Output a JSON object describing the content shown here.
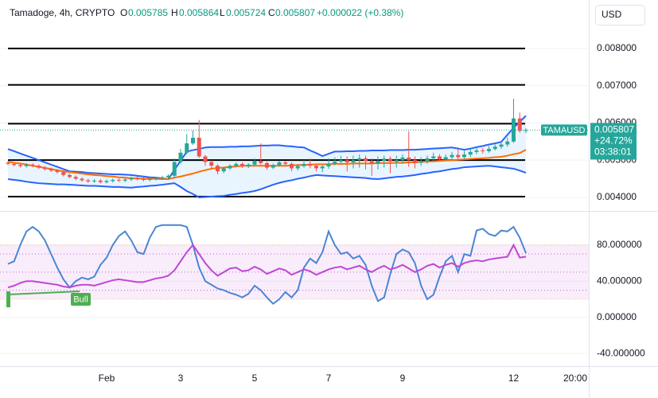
{
  "chart_data": [
    {
      "type": "candlestick",
      "title": "Tamadoge, 4h, CRYPTO",
      "ohlc_labels": [
        "O",
        "H",
        "L",
        "C"
      ],
      "change_label": "+0.000022 (+0.38%)",
      "currency": "USD",
      "symbol": "TAMAUSD",
      "price_tag": {
        "change": "+24.72%",
        "countdown": "03:38:01"
      },
      "categories": [
        null,
        null,
        null,
        null,
        null,
        null,
        null,
        null,
        null,
        null,
        null,
        null,
        null,
        null,
        null,
        null,
        "Feb",
        null,
        null,
        null,
        null,
        null,
        null,
        null,
        null,
        null,
        null,
        null,
        "3",
        null,
        null,
        null,
        null,
        null,
        null,
        null,
        null,
        null,
        null,
        null,
        "5",
        null,
        null,
        null,
        null,
        null,
        null,
        null,
        null,
        null,
        null,
        null,
        "7",
        null,
        null,
        null,
        null,
        null,
        null,
        null,
        null,
        null,
        null,
        null,
        "9",
        null,
        null,
        null,
        null,
        null,
        null,
        null,
        null,
        null,
        null,
        null,
        null,
        null,
        null,
        null,
        null,
        null,
        "12",
        null,
        null,
        null,
        null,
        null,
        null,
        null,
        null,
        null,
        "20:00"
      ],
      "open": [
        0.00493,
        0.0049,
        0.00487,
        0.00484,
        0.00488,
        0.00485,
        0.0048,
        0.00476,
        0.00472,
        0.00468,
        0.0046,
        0.00455,
        0.0045,
        0.00446,
        0.00443,
        0.00445,
        0.00441,
        0.00444,
        0.00447,
        0.00445,
        0.00448,
        0.00452,
        0.0045,
        0.00447,
        0.00449,
        0.00451,
        0.00454,
        0.00458,
        0.00495,
        0.0052,
        0.00545,
        0.0056,
        0.0051,
        0.00495,
        0.00485,
        0.0047,
        0.00478,
        0.00485,
        0.0049,
        0.00483,
        0.00488,
        0.00498,
        0.00492,
        0.0048,
        0.00487,
        0.00494,
        0.0049,
        0.00478,
        0.00484,
        0.0049,
        0.00485,
        0.00478,
        0.00483,
        0.0049,
        0.00496,
        0.005,
        0.00494,
        0.005,
        0.00505,
        0.00497,
        0.0049,
        0.00498,
        0.00504,
        0.00496,
        0.005,
        0.00507,
        0.005,
        0.00493,
        0.00498,
        0.00505,
        0.0051,
        0.00502,
        0.00508,
        0.00514,
        0.00508,
        0.00515,
        0.00522,
        0.00526,
        0.00524,
        0.0053,
        0.00536,
        0.00542,
        0.0055,
        0.00612,
        0.005785,
        null,
        null,
        null,
        null,
        null,
        null,
        null,
        null
      ],
      "high": [
        0.00497,
        0.00494,
        0.00491,
        0.00492,
        0.00492,
        0.00489,
        0.00484,
        0.0048,
        0.00476,
        0.00472,
        0.00464,
        0.00459,
        0.00454,
        0.0045,
        0.00449,
        0.00449,
        0.00448,
        0.00451,
        0.00451,
        0.00452,
        0.00456,
        0.00456,
        0.00454,
        0.00453,
        0.00455,
        0.00458,
        0.00462,
        0.00505,
        0.0053,
        0.0057,
        0.0058,
        0.00608,
        0.00514,
        0.00499,
        0.00489,
        0.00482,
        0.00489,
        0.00494,
        0.00494,
        0.00492,
        0.00505,
        0.00545,
        0.00496,
        0.00491,
        0.00498,
        0.00498,
        0.00494,
        0.00488,
        0.005,
        0.00505,
        0.00489,
        0.00487,
        0.00505,
        0.00508,
        0.00512,
        0.0051,
        0.00512,
        0.00515,
        0.00512,
        0.00505,
        0.0051,
        0.00512,
        0.0051,
        0.00512,
        0.00515,
        0.00577,
        0.0051,
        0.00508,
        0.00512,
        0.0052,
        0.00516,
        0.00515,
        0.00522,
        0.00535,
        0.00525,
        0.0053,
        0.00534,
        0.00532,
        0.00538,
        0.00542,
        0.0055,
        0.0056,
        0.00665,
        0.00628,
        0.005864,
        null,
        null,
        null,
        null,
        null,
        null,
        null,
        null
      ],
      "low": [
        0.00486,
        0.00483,
        0.0048,
        0.0048,
        0.00481,
        0.00476,
        0.00472,
        0.00468,
        0.00464,
        0.00456,
        0.00451,
        0.00446,
        0.00442,
        0.00439,
        0.00439,
        0.00437,
        0.00437,
        0.0044,
        0.00441,
        0.00441,
        0.00444,
        0.00446,
        0.00443,
        0.00443,
        0.00445,
        0.00447,
        0.0045,
        0.00454,
        0.00491,
        0.00516,
        0.00541,
        0.00506,
        0.00485,
        0.00478,
        0.00462,
        0.00465,
        0.00474,
        0.00481,
        0.00479,
        0.00479,
        0.00484,
        0.00488,
        0.00474,
        0.00476,
        0.00483,
        0.00486,
        0.0047,
        0.00472,
        0.0048,
        0.00478,
        0.0047,
        0.00468,
        0.00477,
        0.00486,
        0.0049,
        0.0047,
        0.00478,
        0.0048,
        0.00475,
        0.00458,
        0.00475,
        0.0048,
        0.00465,
        0.0048,
        0.0049,
        0.00482,
        0.00478,
        0.00485,
        0.0049,
        0.00495,
        0.00496,
        0.00498,
        0.00502,
        0.005,
        0.00504,
        0.00508,
        0.00516,
        0.00518,
        0.0052,
        0.00526,
        0.0053,
        0.00536,
        0.00546,
        0.00574,
        0.005724,
        null,
        null,
        null,
        null,
        null,
        null,
        null,
        null
      ],
      "close": [
        0.0049,
        0.00487,
        0.00484,
        0.00488,
        0.00485,
        0.0048,
        0.00476,
        0.00472,
        0.00468,
        0.0046,
        0.00455,
        0.0045,
        0.00446,
        0.00443,
        0.00445,
        0.00441,
        0.00444,
        0.00447,
        0.00445,
        0.00448,
        0.00452,
        0.0045,
        0.00447,
        0.00449,
        0.00451,
        0.00454,
        0.00458,
        0.00495,
        0.0052,
        0.00545,
        0.0056,
        0.0051,
        0.00495,
        0.00485,
        0.0047,
        0.00478,
        0.00485,
        0.0049,
        0.00483,
        0.00488,
        0.00498,
        0.00492,
        0.0048,
        0.00487,
        0.00494,
        0.0049,
        0.00478,
        0.00484,
        0.0049,
        0.00485,
        0.00478,
        0.00483,
        0.0049,
        0.00496,
        0.005,
        0.00494,
        0.005,
        0.00505,
        0.00497,
        0.0049,
        0.00498,
        0.00504,
        0.00496,
        0.005,
        0.00507,
        0.005,
        0.00493,
        0.00498,
        0.00505,
        0.0051,
        0.00502,
        0.00508,
        0.00514,
        0.00508,
        0.00515,
        0.00522,
        0.00526,
        0.00524,
        0.0053,
        0.00536,
        0.00542,
        0.0055,
        0.00612,
        0.005785,
        0.005807,
        null,
        null,
        null,
        null,
        null,
        null,
        null,
        null
      ],
      "up_color": "#26a69a",
      "down_color": "#ef5350",
      "overlays": [
        {
          "color": "#2962ff",
          "values": [
            0.0053,
            0.00524,
            0.00518,
            0.00512,
            0.00506,
            0.005,
            0.00494,
            0.00488,
            0.00482,
            0.00476,
            0.0047,
            0.00469,
            0.00468,
            0.00466,
            0.00465,
            0.00464,
            0.00463,
            0.00462,
            0.00462,
            0.00461,
            0.0046,
            0.00458,
            0.00456,
            0.00454,
            0.00453,
            0.00451,
            0.00449,
            0.00474,
            0.00498,
            0.00523,
            0.00527,
            0.0053,
            0.00534,
            0.00535,
            0.00535,
            0.00535,
            0.00536,
            0.00536,
            0.00537,
            0.00537,
            0.00538,
            0.00539,
            0.00539,
            0.0054,
            0.0054,
            0.00538,
            0.00537,
            0.00535,
            0.00534,
            0.00526,
            0.00519,
            0.00511,
            0.00517,
            0.00523,
            0.00523,
            0.00524,
            0.00524,
            0.00525,
            0.00525,
            0.00526,
            0.00526,
            0.00526,
            0.00527,
            0.00527,
            0.00527,
            0.00528,
            0.00528,
            0.00529,
            0.0053,
            0.00531,
            0.00532,
            0.00533,
            0.00534,
            0.00531,
            0.00528,
            0.00531,
            0.00535,
            0.00538,
            0.00542,
            0.00545,
            0.00549,
            0.00568,
            0.00587,
            0.00603,
            0.00619,
            null,
            null,
            null,
            null,
            null,
            null,
            null,
            null
          ]
        },
        {
          "color": "#ff6d00",
          "values": [
            0.00496,
            0.00493,
            0.00491,
            0.00488,
            0.00485,
            0.00482,
            0.00479,
            0.00476,
            0.00473,
            0.0047,
            0.00468,
            0.00466,
            0.00464,
            0.00462,
            0.0046,
            0.00459,
            0.00457,
            0.00456,
            0.00454,
            0.00453,
            0.00451,
            0.00451,
            0.0045,
            0.0045,
            0.0045,
            0.00449,
            0.00449,
            0.00453,
            0.00456,
            0.0046,
            0.00464,
            0.00469,
            0.00473,
            0.00477,
            0.00479,
            0.0048,
            0.00482,
            0.00483,
            0.00485,
            0.00485,
            0.00485,
            0.00485,
            0.00485,
            0.00485,
            0.00485,
            0.00485,
            0.00486,
            0.00487,
            0.00487,
            0.00488,
            0.00489,
            0.00489,
            0.00489,
            0.0049,
            0.0049,
            0.0049,
            0.00491,
            0.00491,
            0.00491,
            0.00491,
            0.00492,
            0.00492,
            0.00492,
            0.00493,
            0.00493,
            0.00494,
            0.00494,
            0.00495,
            0.00496,
            0.00497,
            0.00498,
            0.00499,
            0.005,
            0.00501,
            0.00502,
            0.00503,
            0.00504,
            0.00505,
            0.00506,
            0.00508,
            0.00509,
            0.00512,
            0.00516,
            0.00519,
            0.00528,
            null,
            null,
            null,
            null,
            null,
            null,
            null,
            null
          ]
        },
        {
          "color": "#2962ff",
          "values": [
            0.00449,
            0.00447,
            0.00445,
            0.00442,
            0.0044,
            0.00438,
            0.00437,
            0.00436,
            0.00435,
            0.00435,
            0.00434,
            0.00433,
            0.00432,
            0.00431,
            0.00431,
            0.0043,
            0.00429,
            0.00428,
            0.00428,
            0.00427,
            0.00426,
            0.00428,
            0.00429,
            0.00431,
            0.00432,
            0.00434,
            0.00436,
            0.00438,
            0.00428,
            0.00417,
            0.00409,
            0.004,
            0.00401,
            0.00402,
            0.00403,
            0.00404,
            0.00407,
            0.00409,
            0.00412,
            0.00414,
            0.00417,
            0.00422,
            0.00428,
            0.00434,
            0.00439,
            0.00443,
            0.00446,
            0.0045,
            0.00453,
            0.00457,
            0.0046,
            0.00459,
            0.00458,
            0.00457,
            0.00456,
            0.00455,
            0.00454,
            0.00453,
            0.00452,
            0.0045,
            0.00449,
            0.00451,
            0.00453,
            0.00455,
            0.00456,
            0.00458,
            0.0046,
            0.00463,
            0.00465,
            0.00468,
            0.0047,
            0.00473,
            0.00476,
            0.00478,
            0.00481,
            0.00482,
            0.00483,
            0.00484,
            0.00485,
            0.00483,
            0.00481,
            0.00479,
            0.00477,
            0.00472,
            0.00466,
            null,
            null,
            null,
            null,
            null,
            null,
            null,
            null
          ]
        }
      ],
      "levels": [
        0.008,
        0.00702,
        0.00598,
        0.005,
        0.00402
      ],
      "level_color": "#000000",
      "ylim": [
        0.0037,
        0.0093
      ],
      "yticks": [
        {
          "value": 0.008,
          "label": "0.008000"
        },
        {
          "value": 0.007,
          "label": "0.007000"
        },
        {
          "value": 0.006,
          "label": "0.006000"
        },
        {
          "value": 0.005,
          "label": "0.005000"
        },
        {
          "value": 0.004,
          "label": "0.004000"
        }
      ]
    },
    {
      "type": "line",
      "series": [
        {
          "color": "#4a86d4",
          "values": [
            59,
            62,
            80,
            95,
            100,
            95,
            85,
            70,
            55,
            42,
            33,
            40,
            44,
            42,
            45,
            58,
            66,
            80,
            90,
            95,
            85,
            72,
            70,
            88,
            100,
            102,
            102,
            102,
            102,
            100,
            80,
            55,
            40,
            36,
            32,
            30,
            27,
            25,
            22,
            26,
            35,
            30,
            22,
            15,
            20,
            28,
            22,
            30,
            55,
            65,
            60,
            72,
            95,
            80,
            70,
            72,
            65,
            68,
            58,
            35,
            18,
            22,
            48,
            70,
            75,
            72,
            60,
            35,
            20,
            25,
            45,
            62,
            68,
            50,
            70,
            68,
            96,
            98,
            92,
            90,
            96,
            95,
            100,
            88,
            71,
            null,
            null,
            null,
            null,
            null,
            null,
            null,
            null
          ]
        },
        {
          "color": "#c046d6",
          "values": [
            33,
            35,
            38,
            40,
            40,
            39,
            38,
            37,
            36,
            34,
            33,
            35,
            36,
            36,
            35,
            37,
            39,
            41,
            42,
            41,
            40,
            39,
            39,
            41,
            43,
            44,
            46,
            52,
            62,
            72,
            80,
            70,
            60,
            52,
            46,
            50,
            54,
            55,
            51,
            52,
            56,
            53,
            48,
            51,
            54,
            52,
            47,
            50,
            53,
            51,
            47,
            50,
            53,
            55,
            56,
            53,
            55,
            57,
            53,
            50,
            54,
            57,
            53,
            55,
            58,
            54,
            50,
            53,
            57,
            59,
            55,
            58,
            60,
            56,
            60,
            62,
            63,
            62,
            64,
            65,
            66,
            67,
            80,
            66,
            67,
            null,
            null,
            null,
            null,
            null,
            null,
            null,
            null
          ]
        }
      ],
      "band": [
        20,
        80
      ],
      "levels": [
        70,
        50,
        30
      ],
      "annotation": "Bull",
      "ylim": [
        -54,
        115
      ],
      "yticks": [
        {
          "value": 80,
          "label": "80.000000"
        },
        {
          "value": 40,
          "label": "40.000000"
        },
        {
          "value": 0,
          "label": "0.000000"
        },
        {
          "value": -40,
          "label": "-40.000000"
        }
      ]
    }
  ]
}
